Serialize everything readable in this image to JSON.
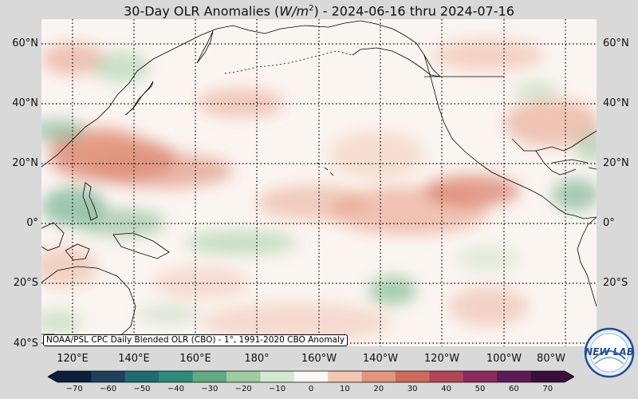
{
  "title": {
    "prefix": "30-Day OLR Anomalies (",
    "unit": "W/m",
    "unit_exp": "2",
    "suffix": ") - 2024-06-16 thru 2024-07-16"
  },
  "latitude_labels": [
    "60°N",
    "40°N",
    "20°N",
    "0°",
    "20°S",
    "40°S"
  ],
  "longitude_labels": [
    "120°E",
    "140°E",
    "160°E",
    "180°",
    "160°W",
    "140°W",
    "120°W",
    "100°W",
    "80°W"
  ],
  "source_note": "NOAA/PSL CPC Daily Blended OLR (CBO) - 1°, 1991-2020 CBO Anomaly",
  "colorbar": {
    "ticks": [
      "−70",
      "−60",
      "−50",
      "−40",
      "−30",
      "−20",
      "−10",
      "0",
      "10",
      "20",
      "30",
      "40",
      "50",
      "60",
      "70"
    ],
    "colors": [
      "#0b1f3a",
      "#1f3f5c",
      "#1e6b72",
      "#2e8a7a",
      "#5fa984",
      "#9ccc9f",
      "#d3e8d1",
      "#fbf7f3",
      "#f1c8b2",
      "#e3957d",
      "#cf6a5c",
      "#b24456",
      "#8c2a5e",
      "#5e1a56",
      "#3a0f3c"
    ]
  },
  "logo": {
    "text": "NEW LAB"
  },
  "map": {
    "extent": {
      "lon_min": 110,
      "lon_max": 290,
      "lat_min": -40,
      "lat_max": 67
    },
    "land_outline_color": "#000000",
    "grid_style": "dotted",
    "background_tint": "#fbf5f1"
  }
}
